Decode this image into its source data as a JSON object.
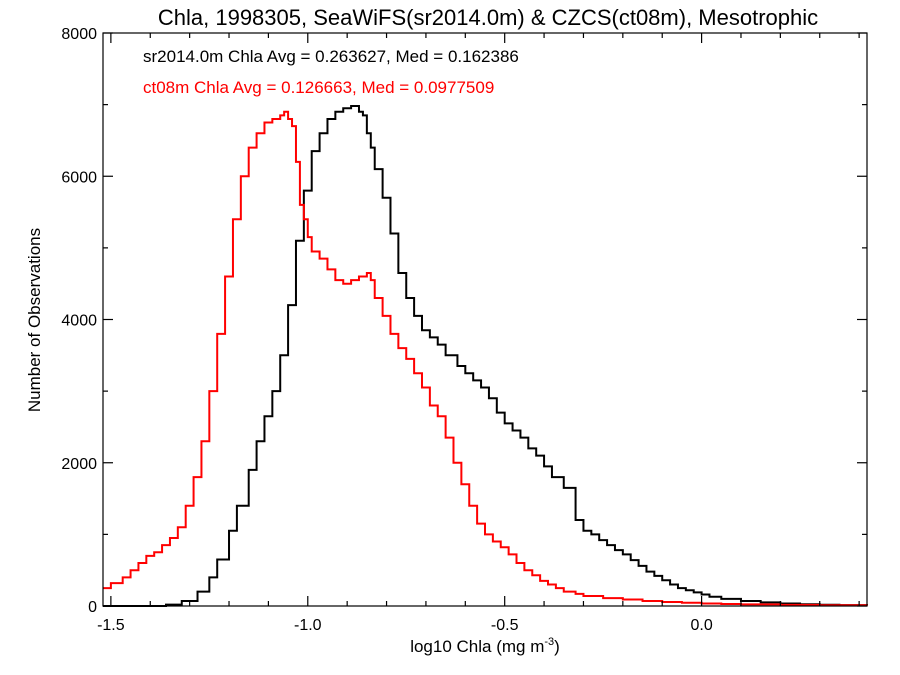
{
  "chart_data": {
    "type": "line",
    "style": "step histogram",
    "title": "Chla, 1998305, SeaWiFS(sr2014.0m) & CZCS(ct08m), Mesotrophic",
    "xlabel": "log10 Chla (mg m",
    "xlabel_sup": "-3",
    "xlabel_close": ")",
    "ylabel": "Number of Observations",
    "xlim": [
      -1.52,
      0.42
    ],
    "ylim": [
      0,
      8000
    ],
    "xticks": [
      -1.5,
      -1.0,
      -0.5,
      0.0
    ],
    "xtick_labels": [
      "-1.5",
      "-1.0",
      "-0.5",
      "0.0"
    ],
    "yticks": [
      0,
      2000,
      4000,
      6000,
      8000
    ],
    "ytick_labels": [
      "0",
      "2000",
      "4000",
      "6000",
      "8000"
    ],
    "grid": false,
    "annotations": [
      {
        "text": "sr2014.0m Chla Avg = 0.263627, Med = 0.162386",
        "color": "#000000"
      },
      {
        "text": "ct08m Chla Avg = 0.126663, Med = 0.0977509",
        "color": "#ff0000"
      }
    ],
    "series": [
      {
        "color": "#000000",
        "x": [
          -1.52,
          -1.45,
          -1.4,
          -1.36,
          -1.32,
          -1.28,
          -1.25,
          -1.23,
          -1.2,
          -1.18,
          -1.15,
          -1.13,
          -1.11,
          -1.09,
          -1.07,
          -1.05,
          -1.03,
          -1.01,
          -0.99,
          -0.97,
          -0.95,
          -0.93,
          -0.91,
          -0.89,
          -0.87,
          -0.86,
          -0.85,
          -0.84,
          -0.83,
          -0.81,
          -0.79,
          -0.77,
          -0.75,
          -0.73,
          -0.71,
          -0.69,
          -0.67,
          -0.65,
          -0.62,
          -0.6,
          -0.58,
          -0.56,
          -0.54,
          -0.52,
          -0.5,
          -0.48,
          -0.46,
          -0.44,
          -0.42,
          -0.4,
          -0.38,
          -0.35,
          -0.32,
          -0.3,
          -0.28,
          -0.26,
          -0.24,
          -0.22,
          -0.2,
          -0.18,
          -0.16,
          -0.14,
          -0.12,
          -0.1,
          -0.08,
          -0.06,
          -0.04,
          -0.02,
          0.0,
          0.02,
          0.05,
          0.1,
          0.15,
          0.2,
          0.25,
          0.3,
          0.35,
          0.42
        ],
        "y": [
          0,
          0,
          0,
          20,
          70,
          200,
          400,
          650,
          1050,
          1400,
          1900,
          2300,
          2650,
          3000,
          3500,
          4200,
          5100,
          5800,
          6350,
          6600,
          6800,
          6900,
          6950,
          6980,
          6900,
          6850,
          6600,
          6400,
          6100,
          5700,
          5200,
          4650,
          4300,
          4050,
          3850,
          3750,
          3650,
          3500,
          3350,
          3250,
          3150,
          3050,
          2900,
          2700,
          2550,
          2450,
          2350,
          2200,
          2100,
          1950,
          1800,
          1650,
          1200,
          1050,
          1000,
          920,
          850,
          780,
          720,
          640,
          560,
          480,
          420,
          360,
          300,
          250,
          220,
          190,
          160,
          130,
          100,
          70,
          50,
          35,
          25,
          18,
          12,
          8
        ]
      },
      {
        "color": "#ff0000",
        "x": [
          -1.52,
          -1.5,
          -1.47,
          -1.45,
          -1.43,
          -1.41,
          -1.39,
          -1.37,
          -1.35,
          -1.33,
          -1.31,
          -1.29,
          -1.27,
          -1.25,
          -1.23,
          -1.21,
          -1.19,
          -1.17,
          -1.15,
          -1.13,
          -1.11,
          -1.09,
          -1.07,
          -1.06,
          -1.05,
          -1.04,
          -1.03,
          -1.02,
          -1.01,
          -1.0,
          -0.99,
          -0.97,
          -0.95,
          -0.93,
          -0.91,
          -0.89,
          -0.87,
          -0.85,
          -0.84,
          -0.83,
          -0.81,
          -0.79,
          -0.77,
          -0.75,
          -0.73,
          -0.71,
          -0.69,
          -0.67,
          -0.65,
          -0.63,
          -0.61,
          -0.59,
          -0.57,
          -0.55,
          -0.53,
          -0.51,
          -0.49,
          -0.47,
          -0.45,
          -0.43,
          -0.41,
          -0.39,
          -0.37,
          -0.35,
          -0.32,
          -0.3,
          -0.25,
          -0.2,
          -0.15,
          -0.1,
          -0.05,
          0.0,
          0.05,
          0.1,
          0.2,
          0.3,
          0.42
        ],
        "y": [
          250,
          320,
          400,
          500,
          600,
          700,
          750,
          850,
          950,
          1100,
          1400,
          1800,
          2300,
          3000,
          3800,
          4600,
          5400,
          6000,
          6400,
          6600,
          6750,
          6800,
          6850,
          6900,
          6800,
          6700,
          6200,
          5600,
          5400,
          5150,
          4950,
          4850,
          4700,
          4550,
          4500,
          4550,
          4600,
          4650,
          4550,
          4300,
          4050,
          3800,
          3600,
          3450,
          3250,
          3050,
          2800,
          2650,
          2350,
          2000,
          1700,
          1400,
          1150,
          1000,
          900,
          820,
          720,
          600,
          500,
          430,
          350,
          300,
          250,
          200,
          170,
          140,
          110,
          90,
          70,
          55,
          45,
          35,
          28,
          22,
          15,
          10,
          6
        ]
      }
    ]
  }
}
